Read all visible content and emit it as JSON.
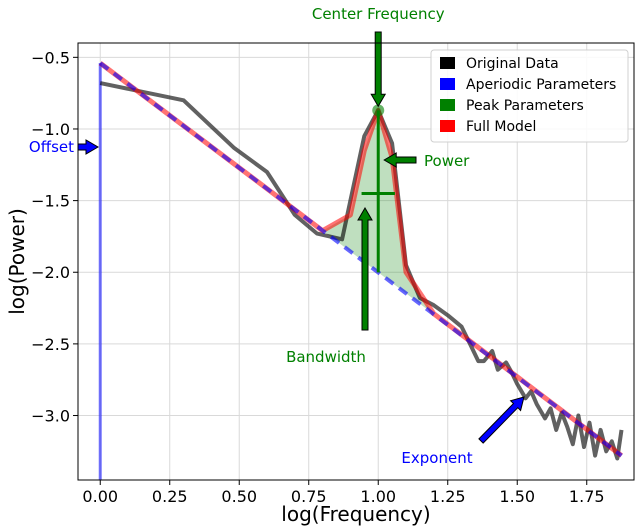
{
  "chart_data": {
    "type": "line",
    "xlabel": "log(Frequency)",
    "ylabel": "log(Power)",
    "xlim": [
      -0.08,
      1.92
    ],
    "ylim": [
      -3.45,
      -0.4
    ],
    "xticks": [
      0.0,
      0.25,
      0.5,
      0.75,
      1.0,
      1.25,
      1.5,
      1.75
    ],
    "xtick_labels": [
      "0.00",
      "0.25",
      "0.50",
      "0.75",
      "1.00",
      "1.25",
      "1.50",
      "1.75"
    ],
    "yticks": [
      -0.5,
      -1.0,
      -1.5,
      -2.0,
      -2.5,
      -3.0
    ],
    "ytick_labels": [
      "−0.5",
      "−1.0",
      "−1.5",
      "−2.0",
      "−2.5",
      "−3.0"
    ],
    "grid": true,
    "legend_position": "top-right",
    "legend": [
      {
        "label": "Original Data",
        "color": "#000000"
      },
      {
        "label": "Aperiodic Parameters",
        "color": "#0000ff"
      },
      {
        "label": "Peak Parameters",
        "color": "#008000"
      },
      {
        "label": "Full Model",
        "color": "#ff0000"
      }
    ],
    "series": [
      {
        "name": "Original Data",
        "color": "#000000",
        "x": [
          0.0,
          0.3,
          0.48,
          0.6,
          0.7,
          0.78,
          0.87,
          0.9,
          0.95,
          1.0,
          1.05,
          1.1,
          1.15,
          1.2,
          1.25,
          1.3,
          1.33,
          1.36,
          1.38,
          1.41,
          1.43,
          1.46,
          1.48,
          1.5,
          1.53,
          1.55,
          1.57,
          1.6,
          1.62,
          1.64,
          1.66,
          1.68,
          1.7,
          1.72,
          1.74,
          1.76,
          1.78,
          1.8,
          1.82,
          1.84,
          1.86,
          1.875
        ],
        "y": [
          -0.68,
          -0.8,
          -1.13,
          -1.3,
          -1.6,
          -1.73,
          -1.77,
          -1.5,
          -1.05,
          -0.87,
          -1.1,
          -1.95,
          -2.18,
          -2.23,
          -2.3,
          -2.38,
          -2.5,
          -2.62,
          -2.62,
          -2.55,
          -2.68,
          -2.63,
          -2.7,
          -2.78,
          -2.88,
          -2.83,
          -2.92,
          -3.02,
          -2.95,
          -3.1,
          -2.98,
          -3.08,
          -3.2,
          -3.0,
          -3.22,
          -3.05,
          -3.28,
          -3.1,
          -3.25,
          -3.18,
          -3.3,
          -3.1
        ]
      },
      {
        "name": "Aperiodic Parameters",
        "color": "#0000ff",
        "x": [
          0.0,
          1.875
        ],
        "y": [
          -0.54,
          -3.28
        ]
      },
      {
        "name": "Full Model",
        "color": "#ff0000",
        "x": [
          0.0,
          0.5,
          0.8,
          0.9,
          0.95,
          1.0,
          1.05,
          1.1,
          1.2,
          1.5,
          1.875
        ],
        "y": [
          -0.54,
          -1.27,
          -1.71,
          -1.6,
          -1.15,
          -0.87,
          -1.2,
          -2.0,
          -2.29,
          -2.73,
          -3.28
        ]
      }
    ],
    "peak": {
      "center_frequency": 1.0,
      "power": -0.87,
      "bandwidth_x": [
        0.94,
        1.06
      ],
      "bandwidth_y": -1.45
    },
    "annotations": [
      {
        "text": "Center Frequency",
        "color": "#008000"
      },
      {
        "text": "Power",
        "color": "#008000"
      },
      {
        "text": "Bandwidth",
        "color": "#008000"
      },
      {
        "text": "Offset",
        "color": "#0000ff"
      },
      {
        "text": "Exponent",
        "color": "#0000ff"
      }
    ]
  }
}
